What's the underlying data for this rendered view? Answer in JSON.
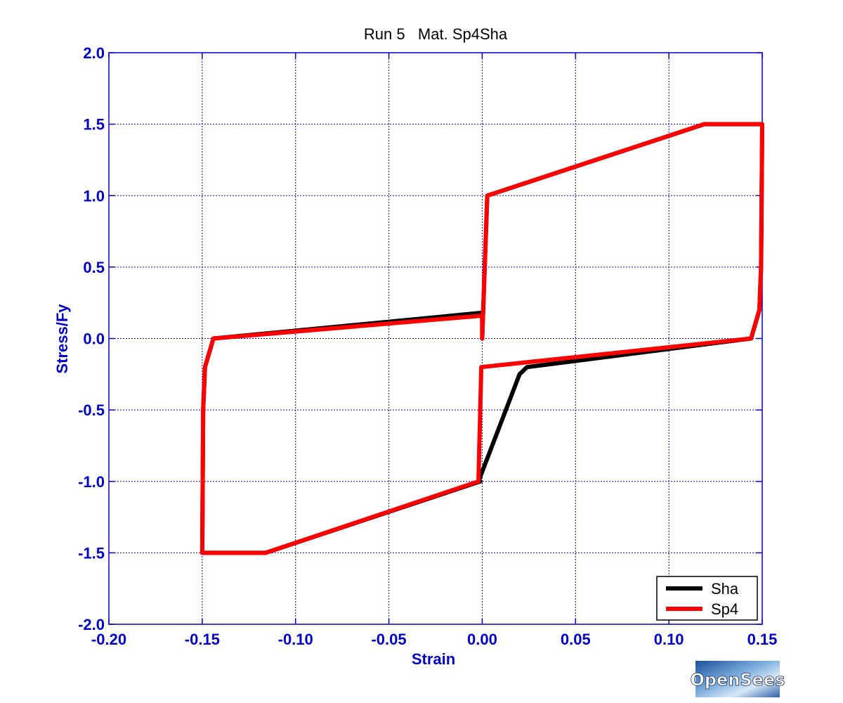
{
  "chart_data": {
    "type": "line",
    "title": "Run 5   Mat. Sp4Sha",
    "xlabel": "Strain",
    "ylabel": "Stress/Fy",
    "xlim": [
      -0.2,
      0.15
    ],
    "ylim": [
      -2.0,
      2.0
    ],
    "xticks": [
      -0.2,
      -0.15,
      -0.1,
      -0.05,
      0.0,
      0.05,
      0.1,
      0.15
    ],
    "yticks": [
      -2.0,
      -1.5,
      -1.0,
      -0.5,
      0.0,
      0.5,
      1.0,
      1.5,
      2.0
    ],
    "xtick_labels": [
      "-0.20",
      "-0.15",
      "-0.10",
      "-0.05",
      "0.00",
      "0.05",
      "0.10",
      "0.15"
    ],
    "ytick_labels": [
      "-2.0",
      "-1.5",
      "-1.0",
      "-0.5",
      "0.0",
      "0.5",
      "1.0",
      "1.5",
      "2.0"
    ],
    "grid": true,
    "legend_position": "bottom-right",
    "series": [
      {
        "name": "Sha",
        "color": "#000000",
        "x": [
          0.0,
          0.0027,
          0.119,
          0.15,
          0.1494,
          0.1485,
          0.144,
          0.024,
          0.02,
          -0.002,
          -0.001,
          -0.116,
          -0.15,
          -0.1495,
          -0.1485,
          -0.144,
          0.0,
          0.0
        ],
        "y": [
          0.0,
          1.0,
          1.5,
          1.5,
          0.5,
          0.2,
          0.0,
          -0.2,
          -0.25,
          -1.0,
          -1.0,
          -1.5,
          -1.5,
          -0.5,
          -0.2,
          0.0,
          0.18,
          0.0
        ]
      },
      {
        "name": "Sp4",
        "color": "#ff0000",
        "x": [
          0.0,
          0.0027,
          0.119,
          0.15,
          0.1494,
          0.1485,
          0.144,
          -0.0005,
          -0.002,
          -0.116,
          -0.15,
          -0.1495,
          -0.1485,
          -0.144,
          0.0,
          0.0
        ],
        "y": [
          0.0,
          1.0,
          1.5,
          1.5,
          0.5,
          0.2,
          0.0,
          -0.2,
          -1.0,
          -1.5,
          -1.5,
          -0.5,
          -0.2,
          0.0,
          0.16,
          0.0
        ]
      }
    ]
  },
  "logo": {
    "text": "OpenSees"
  }
}
